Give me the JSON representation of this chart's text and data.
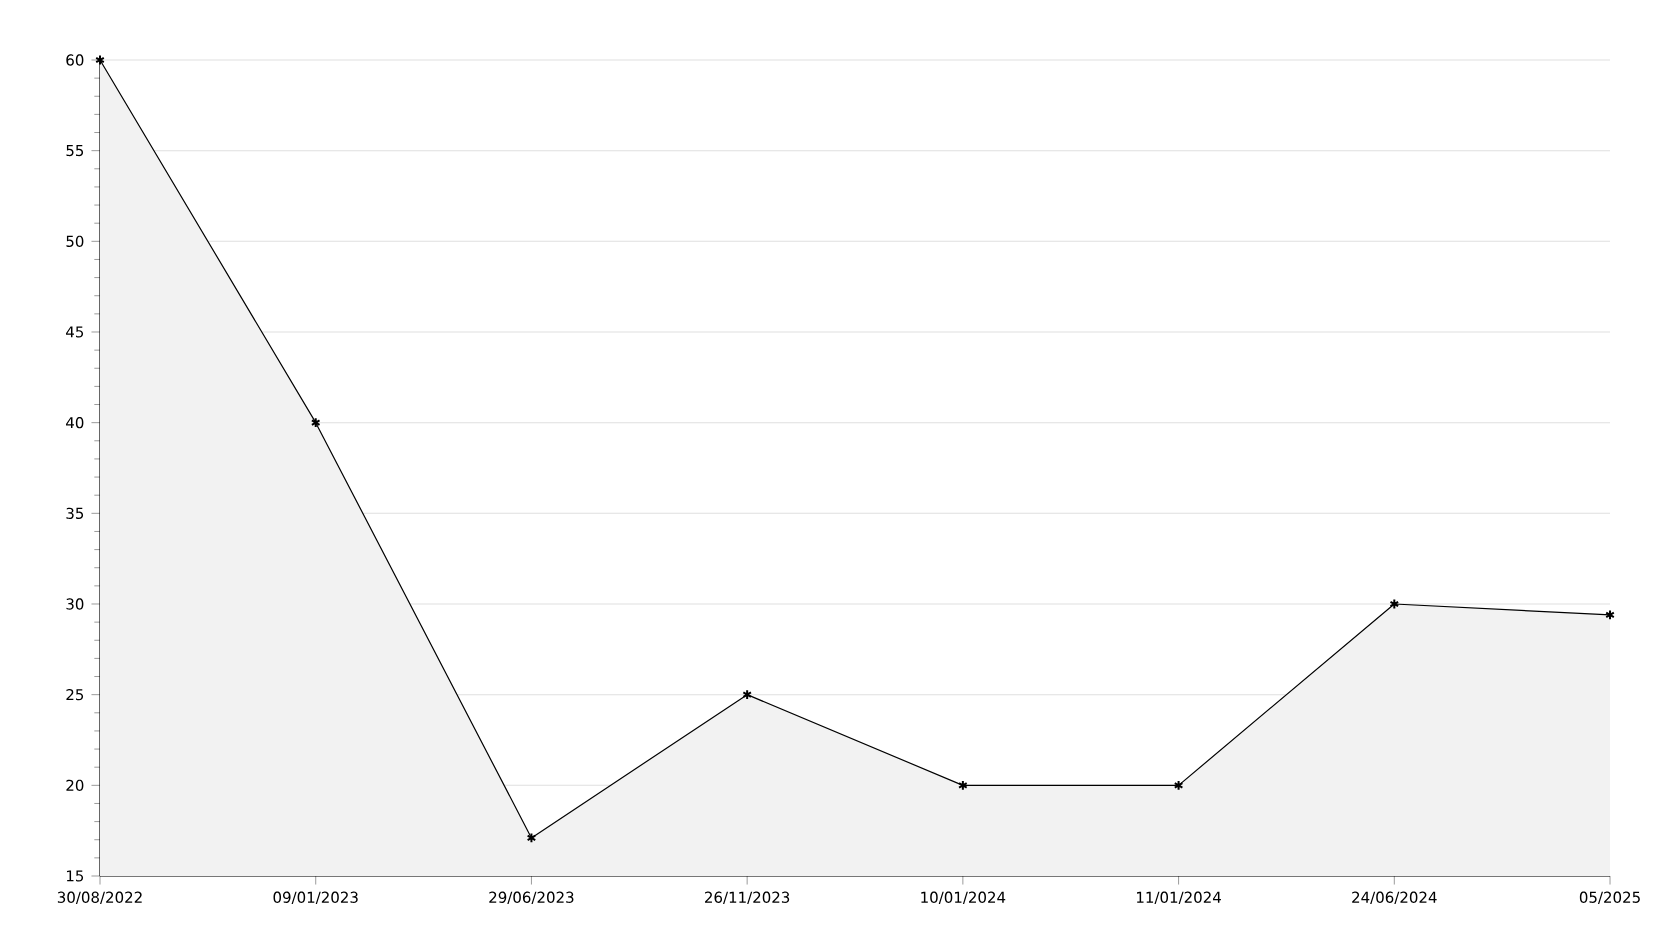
{
  "chart_data": {
    "type": "area",
    "categories": [
      "30/08/2022",
      "09/01/2023",
      "29/06/2023",
      "26/11/2023",
      "10/01/2024",
      "11/01/2024",
      "24/06/2024",
      "05/2025"
    ],
    "series": [
      {
        "color": "#000000",
        "values": [
          60,
          40,
          17.1,
          25,
          20,
          20,
          30,
          29.4
        ]
      }
    ],
    "ylim": [
      15,
      60
    ],
    "yticks": [
      15,
      20,
      25,
      30,
      35,
      40,
      45,
      50,
      55,
      60
    ],
    "grid": "y",
    "marker": "cross",
    "line_style": "solid"
  }
}
